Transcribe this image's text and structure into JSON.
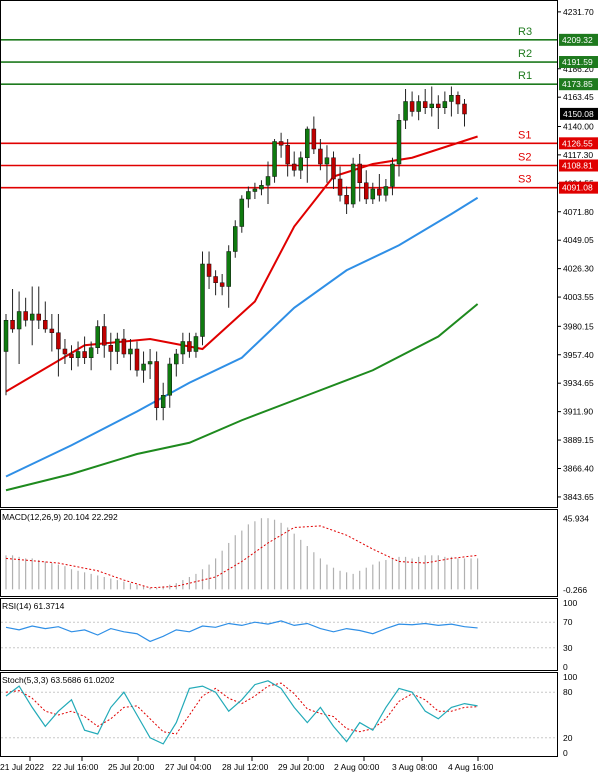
{
  "chart_data": {
    "type": "candlestick",
    "price_axis": {
      "ticks": [
        "4231.70",
        "4186.20",
        "4163.45",
        "4140.00",
        "4117.30",
        "4094.55",
        "4071.80",
        "4049.05",
        "4026.30",
        "4003.55",
        "3980.15",
        "3957.40",
        "3934.65",
        "3911.90",
        "3889.15",
        "3866.40",
        "3843.65"
      ],
      "range": [
        3838,
        4238
      ]
    },
    "time_labels": [
      "21 Jul 2022",
      "22 Jul 16:00",
      "25 Jul 20:00",
      "27 Jul 04:00",
      "28 Jul 12:00",
      "29 Jul 20:00",
      "2 Aug 00:00",
      "3 Aug 08:00",
      "4 Aug 16:00"
    ],
    "levels": [
      {
        "name": "R3",
        "value": 4209.32,
        "label": "4209.32",
        "color": "#1e7a1e"
      },
      {
        "name": "R2",
        "value": 4191.59,
        "label": "4191.59",
        "color": "#1e7a1e"
      },
      {
        "name": "R1",
        "value": 4173.85,
        "label": "4173.85",
        "color": "#1e7a1e"
      },
      {
        "name": "S1",
        "value": 4126.55,
        "label": "4126.55",
        "color": "#e00000"
      },
      {
        "name": "S2",
        "value": 4108.81,
        "label": "4108.81",
        "color": "#e00000"
      },
      {
        "name": "S3",
        "value": 4091.08,
        "label": "4091.08",
        "color": "#e00000"
      }
    ],
    "last_price": {
      "value": 4150.08,
      "label": "4150.08"
    },
    "candles": [
      [
        3960,
        3990,
        3925,
        3985
      ],
      [
        3985,
        4010,
        3975,
        3978
      ],
      [
        3978,
        4008,
        3950,
        3992
      ],
      [
        3992,
        4003,
        3980,
        3985
      ],
      [
        3985,
        4012,
        3965,
        3990
      ],
      [
        3990,
        4012,
        3978,
        3985
      ],
      [
        3985,
        4000,
        3975,
        3978
      ],
      [
        3978,
        3990,
        3960,
        3975
      ],
      [
        3975,
        3990,
        3940,
        3962
      ],
      [
        3962,
        3970,
        3950,
        3958
      ],
      [
        3958,
        3965,
        3945,
        3955
      ],
      [
        3955,
        3968,
        3948,
        3960
      ],
      [
        3960,
        3972,
        3950,
        3955
      ],
      [
        3955,
        3968,
        3945,
        3963
      ],
      [
        3963,
        3985,
        3958,
        3980
      ],
      [
        3980,
        3990,
        3955,
        3965
      ],
      [
        3965,
        3975,
        3945,
        3960
      ],
      [
        3960,
        3975,
        3950,
        3970
      ],
      [
        3970,
        3978,
        3955,
        3958
      ],
      [
        3958,
        3970,
        3945,
        3962
      ],
      [
        3962,
        3968,
        3940,
        3945
      ],
      [
        3945,
        3960,
        3935,
        3950
      ],
      [
        3950,
        3962,
        3938,
        3952
      ],
      [
        3952,
        3960,
        3905,
        3915
      ],
      [
        3915,
        3935,
        3905,
        3925
      ],
      [
        3925,
        3955,
        3915,
        3950
      ],
      [
        3950,
        3962,
        3940,
        3958
      ],
      [
        3958,
        3975,
        3950,
        3968
      ],
      [
        3968,
        3975,
        3955,
        3960
      ],
      [
        3960,
        3975,
        3955,
        3972
      ],
      [
        3972,
        4040,
        3965,
        4030
      ],
      [
        4030,
        4040,
        4010,
        4020
      ],
      [
        4020,
        4025,
        4005,
        4015
      ],
      [
        4015,
        4022,
        4005,
        4012
      ],
      [
        4012,
        4045,
        3995,
        4040
      ],
      [
        4040,
        4065,
        4035,
        4060
      ],
      [
        4060,
        4085,
        4055,
        4082
      ],
      [
        4082,
        4092,
        4075,
        4088
      ],
      [
        4088,
        4095,
        4082,
        4090
      ],
      [
        4090,
        4097,
        4085,
        4093
      ],
      [
        4093,
        4112,
        4078,
        4100
      ],
      [
        4100,
        4130,
        4095,
        4128
      ],
      [
        4128,
        4135,
        4115,
        4125
      ],
      [
        4125,
        4130,
        4100,
        4110
      ],
      [
        4110,
        4120,
        4100,
        4105
      ],
      [
        4105,
        4120,
        4098,
        4115
      ],
      [
        4115,
        4140,
        4095,
        4138
      ],
      [
        4138,
        4148,
        4118,
        4122
      ],
      [
        4122,
        4130,
        4105,
        4110
      ],
      [
        4110,
        4125,
        4095,
        4115
      ],
      [
        4115,
        4120,
        4090,
        4098
      ],
      [
        4098,
        4108,
        4080,
        4085
      ],
      [
        4085,
        4092,
        4070,
        4078
      ],
      [
        4078,
        4115,
        4075,
        4110
      ],
      [
        4110,
        4118,
        4080,
        4095
      ],
      [
        4095,
        4105,
        4078,
        4082
      ],
      [
        4082,
        4095,
        4078,
        4090
      ],
      [
        4090,
        4102,
        4080,
        4085
      ],
      [
        4085,
        4098,
        4080,
        4092
      ],
      [
        4092,
        4115,
        4085,
        4110
      ],
      [
        4110,
        4150,
        4100,
        4145
      ],
      [
        4145,
        4170,
        4138,
        4160
      ],
      [
        4160,
        4168,
        4148,
        4152
      ],
      [
        4152,
        4165,
        4145,
        4160
      ],
      [
        4160,
        4170,
        4150,
        4155
      ],
      [
        4155,
        4172,
        4148,
        4158
      ],
      [
        4158,
        4165,
        4138,
        4155
      ],
      [
        4155,
        4168,
        4150,
        4160
      ],
      [
        4160,
        4172,
        4148,
        4165
      ],
      [
        4165,
        4168,
        4150,
        4158
      ],
      [
        4158,
        4162,
        4140,
        4150
      ]
    ],
    "moving_averages": [
      {
        "color": "#e00000",
        "points": [
          [
            0,
            3928
          ],
          [
            12,
            3965
          ],
          [
            22,
            3970
          ],
          [
            30,
            3962
          ],
          [
            38,
            4000
          ],
          [
            44,
            4060
          ],
          [
            50,
            4100
          ],
          [
            56,
            4110
          ],
          [
            62,
            4115
          ],
          [
            72,
            4132
          ]
        ]
      },
      {
        "color": "#2f8fe6",
        "points": [
          [
            0,
            3860
          ],
          [
            10,
            3885
          ],
          [
            20,
            3912
          ],
          [
            28,
            3935
          ],
          [
            36,
            3955
          ],
          [
            44,
            3995
          ],
          [
            52,
            4025
          ],
          [
            60,
            4045
          ],
          [
            68,
            4070
          ],
          [
            72,
            4083
          ]
        ]
      },
      {
        "color": "#1e8a1e",
        "points": [
          [
            0,
            3849
          ],
          [
            10,
            3862
          ],
          [
            20,
            3878
          ],
          [
            28,
            3887
          ],
          [
            36,
            3905
          ],
          [
            46,
            3925
          ],
          [
            56,
            3945
          ],
          [
            66,
            3972
          ],
          [
            72,
            3998
          ]
        ]
      }
    ],
    "macd": {
      "label": "MACD(12,26,9) 20.104 22.292",
      "axis_labels": [
        "45.934",
        "-0.266"
      ],
      "range": [
        -3,
        50
      ],
      "histogram": [
        22,
        22,
        21,
        20,
        20,
        19,
        18,
        17,
        16,
        15,
        13,
        12,
        11,
        10,
        9,
        8,
        7,
        6,
        5,
        4,
        3,
        2,
        1,
        1,
        2,
        3,
        4,
        6,
        8,
        10,
        13,
        16,
        20,
        25,
        30,
        35,
        38,
        42,
        44,
        46,
        46,
        45,
        43,
        40,
        36,
        32,
        28,
        24,
        20,
        16,
        14,
        12,
        11,
        10,
        12,
        14,
        16,
        18,
        19,
        20,
        21,
        21,
        20,
        21,
        22,
        22,
        22,
        21,
        21,
        20,
        20,
        20,
        20
      ],
      "signal": [
        [
          0,
          20
        ],
        [
          8,
          17
        ],
        [
          14,
          12
        ],
        [
          18,
          6
        ],
        [
          22,
          1
        ],
        [
          26,
          2
        ],
        [
          32,
          8
        ],
        [
          36,
          18
        ],
        [
          40,
          30
        ],
        [
          44,
          40
        ],
        [
          48,
          41
        ],
        [
          52,
          35
        ],
        [
          56,
          26
        ],
        [
          60,
          18
        ],
        [
          64,
          17
        ],
        [
          68,
          20
        ],
        [
          72,
          22
        ]
      ]
    },
    "rsi": {
      "label": "RSI(14) 61.3714",
      "axis_labels": [
        "100",
        "70",
        "30",
        "0"
      ],
      "range": [
        0,
        100
      ],
      "points": [
        [
          0,
          62
        ],
        [
          2,
          58
        ],
        [
          4,
          64
        ],
        [
          6,
          60
        ],
        [
          8,
          63
        ],
        [
          10,
          55
        ],
        [
          12,
          58
        ],
        [
          14,
          50
        ],
        [
          16,
          60
        ],
        [
          18,
          55
        ],
        [
          20,
          52
        ],
        [
          22,
          40
        ],
        [
          24,
          48
        ],
        [
          26,
          58
        ],
        [
          28,
          55
        ],
        [
          30,
          64
        ],
        [
          32,
          62
        ],
        [
          34,
          68
        ],
        [
          36,
          65
        ],
        [
          38,
          70
        ],
        [
          40,
          67
        ],
        [
          42,
          72
        ],
        [
          44,
          65
        ],
        [
          46,
          68
        ],
        [
          48,
          60
        ],
        [
          50,
          55
        ],
        [
          52,
          60
        ],
        [
          54,
          57
        ],
        [
          56,
          52
        ],
        [
          58,
          60
        ],
        [
          60,
          67
        ],
        [
          62,
          66
        ],
        [
          64,
          68
        ],
        [
          66,
          65
        ],
        [
          68,
          67
        ],
        [
          70,
          63
        ],
        [
          72,
          61
        ]
      ]
    },
    "stoch": {
      "label": "Stoch(5,3,3) 63.5686 61.0202",
      "axis_labels": [
        "100",
        "80",
        "20",
        "0"
      ],
      "range": [
        0,
        100
      ],
      "k": [
        [
          0,
          75
        ],
        [
          2,
          88
        ],
        [
          4,
          60
        ],
        [
          6,
          35
        ],
        [
          8,
          55
        ],
        [
          10,
          70
        ],
        [
          12,
          30
        ],
        [
          14,
          25
        ],
        [
          16,
          60
        ],
        [
          18,
          80
        ],
        [
          20,
          50
        ],
        [
          22,
          20
        ],
        [
          24,
          12
        ],
        [
          26,
          40
        ],
        [
          28,
          85
        ],
        [
          30,
          88
        ],
        [
          32,
          80
        ],
        [
          34,
          55
        ],
        [
          36,
          70
        ],
        [
          38,
          90
        ],
        [
          40,
          95
        ],
        [
          42,
          85
        ],
        [
          44,
          60
        ],
        [
          46,
          40
        ],
        [
          48,
          60
        ],
        [
          50,
          35
        ],
        [
          52,
          15
        ],
        [
          54,
          40
        ],
        [
          56,
          30
        ],
        [
          58,
          60
        ],
        [
          60,
          85
        ],
        [
          62,
          80
        ],
        [
          64,
          55
        ],
        [
          66,
          45
        ],
        [
          68,
          60
        ],
        [
          70,
          65
        ],
        [
          72,
          62
        ]
      ],
      "d": [
        [
          0,
          80
        ],
        [
          2,
          82
        ],
        [
          4,
          72
        ],
        [
          6,
          55
        ],
        [
          8,
          50
        ],
        [
          10,
          55
        ],
        [
          12,
          48
        ],
        [
          14,
          35
        ],
        [
          16,
          45
        ],
        [
          18,
          60
        ],
        [
          20,
          62
        ],
        [
          22,
          45
        ],
        [
          24,
          28
        ],
        [
          26,
          25
        ],
        [
          28,
          50
        ],
        [
          30,
          75
        ],
        [
          32,
          85
        ],
        [
          34,
          72
        ],
        [
          36,
          65
        ],
        [
          38,
          75
        ],
        [
          40,
          88
        ],
        [
          42,
          92
        ],
        [
          44,
          78
        ],
        [
          46,
          58
        ],
        [
          48,
          52
        ],
        [
          50,
          48
        ],
        [
          52,
          32
        ],
        [
          54,
          28
        ],
        [
          56,
          32
        ],
        [
          58,
          45
        ],
        [
          60,
          68
        ],
        [
          62,
          78
        ],
        [
          64,
          70
        ],
        [
          66,
          55
        ],
        [
          68,
          55
        ],
        [
          70,
          60
        ],
        [
          72,
          61
        ]
      ]
    }
  }
}
